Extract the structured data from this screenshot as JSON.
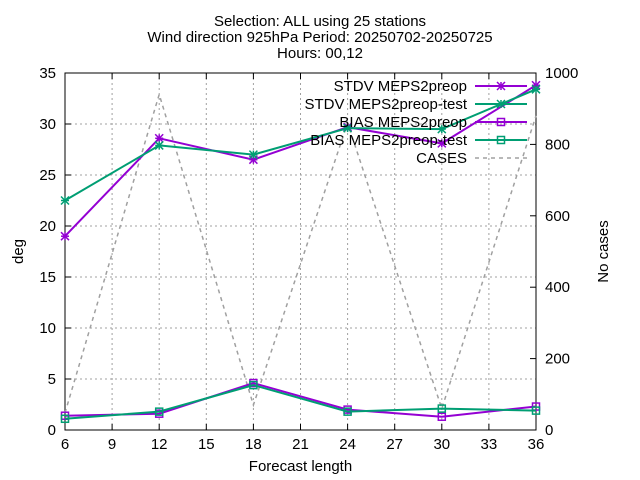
{
  "chart_data": {
    "type": "line",
    "title": [
      "Selection: ALL using    25 stations",
      "Wind direction 925hPa   Period: 20250702-20250725",
      "Hours: 00,12"
    ],
    "xlabel": "Forecast length",
    "ylabel": "deg",
    "y2label": "No cases",
    "xlim": [
      6,
      36
    ],
    "ylim": [
      0,
      35
    ],
    "y2lim": [
      0,
      1000
    ],
    "xticks": [
      "6",
      "9",
      "12",
      "15",
      "18",
      "21",
      "24",
      "27",
      "30",
      "33",
      "36"
    ],
    "yticks": [
      "0",
      "5",
      "10",
      "15",
      "20",
      "25",
      "30",
      "35"
    ],
    "y2ticks": [
      "0",
      "200",
      "400",
      "600",
      "800",
      "1000"
    ],
    "grid": true,
    "legend_position": "top-right",
    "x": [
      6,
      12,
      18,
      24,
      30,
      36
    ],
    "series": [
      {
        "name": "STDV MEPS2preop",
        "axis": "y",
        "color": "#9400d3",
        "marker": "star",
        "dash": "solid",
        "values": [
          19.0,
          28.6,
          26.5,
          29.7,
          28.1,
          33.8
        ]
      },
      {
        "name": "STDV MEPS2preop-test",
        "axis": "y",
        "color": "#009e73",
        "marker": "star",
        "dash": "solid",
        "values": [
          22.5,
          27.9,
          27.0,
          29.6,
          29.5,
          33.4
        ]
      },
      {
        "name": "BIAS MEPS2preop",
        "axis": "y",
        "color": "#9400d3",
        "marker": "square",
        "dash": "solid",
        "values": [
          1.4,
          1.6,
          4.6,
          2.0,
          1.3,
          2.3
        ]
      },
      {
        "name": "BIAS MEPS2preop-test",
        "axis": "y",
        "color": "#009e73",
        "marker": "square",
        "dash": "solid",
        "values": [
          1.1,
          1.8,
          4.4,
          1.8,
          2.1,
          1.9
        ]
      },
      {
        "name": "CASES",
        "axis": "y2",
        "color": "#a0a0a0",
        "marker": "none",
        "dash": "dashed",
        "values": [
          48,
          940,
          70,
          860,
          60,
          880
        ]
      }
    ]
  }
}
